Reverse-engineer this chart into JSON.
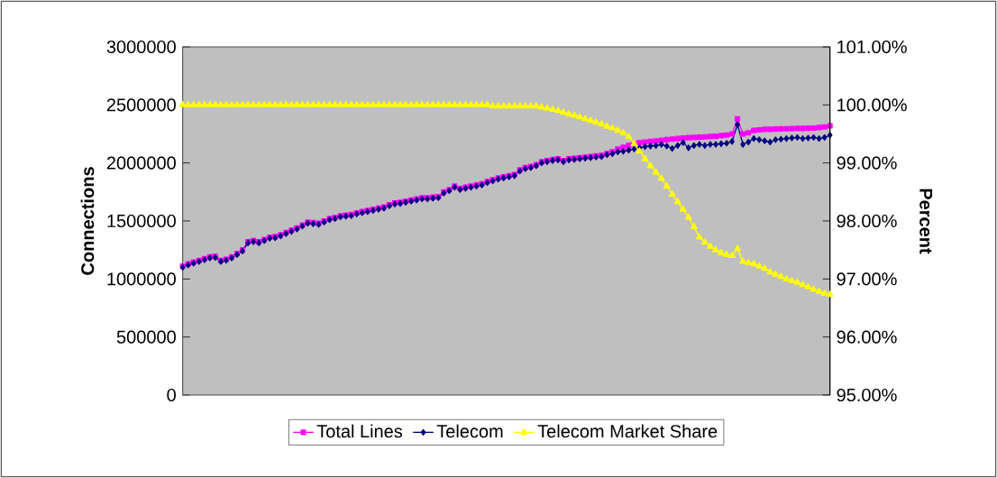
{
  "chart_data": {
    "type": "line",
    "categories": [
      null,
      null,
      null,
      null,
      null,
      null,
      null,
      null,
      null,
      null,
      null,
      null,
      null,
      null,
      null,
      null,
      null,
      null,
      null,
      null,
      null,
      null,
      null,
      null,
      null,
      null,
      null,
      null,
      null,
      null,
      null,
      null,
      null,
      null,
      null,
      null,
      null,
      null,
      null,
      null,
      null,
      null,
      null,
      null,
      null,
      null,
      null,
      null,
      null,
      null,
      null,
      null,
      null,
      null,
      null,
      null,
      null,
      null,
      null,
      null,
      null,
      null,
      null,
      null,
      null,
      null,
      null,
      null,
      null,
      null,
      null,
      null,
      null,
      null,
      null,
      null,
      null,
      null,
      null,
      null,
      null,
      null,
      null,
      null,
      null,
      null,
      null,
      null,
      null,
      null,
      null,
      null,
      null,
      null,
      null,
      null,
      null,
      null,
      null,
      null,
      null,
      null,
      null,
      null,
      null,
      null,
      null,
      null,
      null,
      null,
      null,
      null,
      null,
      null,
      null,
      null,
      null,
      null,
      null,
      null
    ],
    "ylabel": "Connections",
    "y2label": "Percent",
    "ylim": [
      0,
      3000000
    ],
    "yticks": [
      0,
      500000,
      1000000,
      1500000,
      2000000,
      2500000,
      3000000
    ],
    "y2lim": [
      95,
      101
    ],
    "y2ticks": [
      {
        "value": 95,
        "label": "95.00%"
      },
      {
        "value": 96,
        "label": "96.00%"
      },
      {
        "value": 97,
        "label": "97.00%"
      },
      {
        "value": 98,
        "label": "98.00%"
      },
      {
        "value": 99,
        "label": "99.00%"
      },
      {
        "value": 100,
        "label": "100.00%"
      },
      {
        "value": 101,
        "label": "101.00%"
      }
    ],
    "grid": false,
    "legend": "bottom",
    "series": [
      {
        "name": "Total Lines",
        "color": "#ff00ff",
        "marker": "square",
        "values": [
          1110000,
          1130000,
          1145000,
          1160000,
          1175000,
          1190000,
          1195000,
          1160000,
          1170000,
          1190000,
          1220000,
          1250000,
          1320000,
          1330000,
          1320000,
          1340000,
          1360000,
          1365000,
          1380000,
          1400000,
          1420000,
          1440000,
          1465000,
          1490000,
          1485000,
          1480000,
          1500000,
          1520000,
          1530000,
          1545000,
          1550000,
          1555000,
          1570000,
          1580000,
          1590000,
          1600000,
          1610000,
          1620000,
          1640000,
          1655000,
          1660000,
          1670000,
          1680000,
          1690000,
          1700000,
          1700000,
          1705000,
          1710000,
          1750000,
          1770000,
          1800000,
          1780000,
          1790000,
          1800000,
          1810000,
          1820000,
          1840000,
          1855000,
          1870000,
          1880000,
          1890000,
          1900000,
          1940000,
          1960000,
          1970000,
          1985000,
          2010000,
          2020000,
          2030000,
          2035000,
          2020000,
          2035000,
          2040000,
          2045000,
          2050000,
          2055000,
          2060000,
          2065000,
          2080000,
          2095000,
          2120000,
          2135000,
          2150000,
          2165000,
          2175000,
          2180000,
          2185000,
          2190000,
          2195000,
          2200000,
          2205000,
          2210000,
          2215000,
          2218000,
          2220000,
          2222000,
          2225000,
          2228000,
          2230000,
          2235000,
          2240000,
          2250000,
          2380000,
          2250000,
          2260000,
          2280000,
          2285000,
          2290000,
          2290000,
          2292000,
          2294000,
          2295000,
          2296000,
          2297000,
          2298000,
          2299000,
          2300000,
          2305000,
          2310000,
          2320000
        ]
      },
      {
        "name": "Telecom",
        "color": "#000080",
        "marker": "diamond",
        "values": [
          1100000,
          1120000,
          1135000,
          1150000,
          1165000,
          1180000,
          1185000,
          1150000,
          1160000,
          1180000,
          1210000,
          1240000,
          1310000,
          1320000,
          1310000,
          1330000,
          1350000,
          1355000,
          1370000,
          1390000,
          1410000,
          1430000,
          1455000,
          1480000,
          1475000,
          1470000,
          1490000,
          1510000,
          1520000,
          1535000,
          1540000,
          1545000,
          1560000,
          1570000,
          1580000,
          1590000,
          1600000,
          1610000,
          1630000,
          1645000,
          1650000,
          1660000,
          1670000,
          1680000,
          1690000,
          1690000,
          1695000,
          1700000,
          1740000,
          1760000,
          1790000,
          1770000,
          1780000,
          1790000,
          1800000,
          1810000,
          1830000,
          1845000,
          1860000,
          1870000,
          1880000,
          1890000,
          1930000,
          1950000,
          1960000,
          1975000,
          2000000,
          2010000,
          2020000,
          2025000,
          2010000,
          2025000,
          2030000,
          2035000,
          2040000,
          2045000,
          2050000,
          2055000,
          2070000,
          2080000,
          2095000,
          2100000,
          2110000,
          2120000,
          2130000,
          2140000,
          2145000,
          2150000,
          2160000,
          2145000,
          2125000,
          2150000,
          2175000,
          2130000,
          2150000,
          2160000,
          2150000,
          2160000,
          2160000,
          2165000,
          2170000,
          2185000,
          2330000,
          2160000,
          2180000,
          2210000,
          2200000,
          2190000,
          2180000,
          2200000,
          2205000,
          2210000,
          2215000,
          2220000,
          2210000,
          2215000,
          2220000,
          2210000,
          2220000,
          2240000
        ]
      },
      {
        "name": "Telecom Market Share",
        "color": "#ffff00",
        "marker": "triangle",
        "axis": "y2",
        "values": [
          100,
          100,
          100,
          100,
          100,
          100,
          100,
          100,
          100,
          100,
          100,
          100,
          100,
          100,
          100,
          100,
          100,
          100,
          100,
          100,
          100,
          100,
          100,
          100,
          100,
          100,
          100,
          100,
          100,
          100,
          100,
          100,
          100,
          100,
          100,
          100,
          100,
          100,
          100,
          100,
          100,
          100,
          100,
          100,
          100,
          100,
          100,
          100,
          100,
          100,
          100,
          100,
          100,
          100,
          100,
          100,
          100,
          99.98,
          99.98,
          99.98,
          99.98,
          99.98,
          99.98,
          99.98,
          99.98,
          99.98,
          99.96,
          99.94,
          99.92,
          99.9,
          99.87,
          99.84,
          99.82,
          99.79,
          99.76,
          99.73,
          99.7,
          99.67,
          99.63,
          99.6,
          99.56,
          99.52,
          99.45,
          99.33,
          99.2,
          99.07,
          98.95,
          98.84,
          98.73,
          98.6,
          98.46,
          98.33,
          98.2,
          98.06,
          97.9,
          97.72,
          97.63,
          97.56,
          97.5,
          97.45,
          97.42,
          97.4,
          97.52,
          97.3,
          97.28,
          97.26,
          97.22,
          97.18,
          97.12,
          97.08,
          97.04,
          97.0,
          96.97,
          96.94,
          96.9,
          96.86,
          96.82,
          96.78,
          96.75,
          96.73
        ]
      }
    ]
  }
}
